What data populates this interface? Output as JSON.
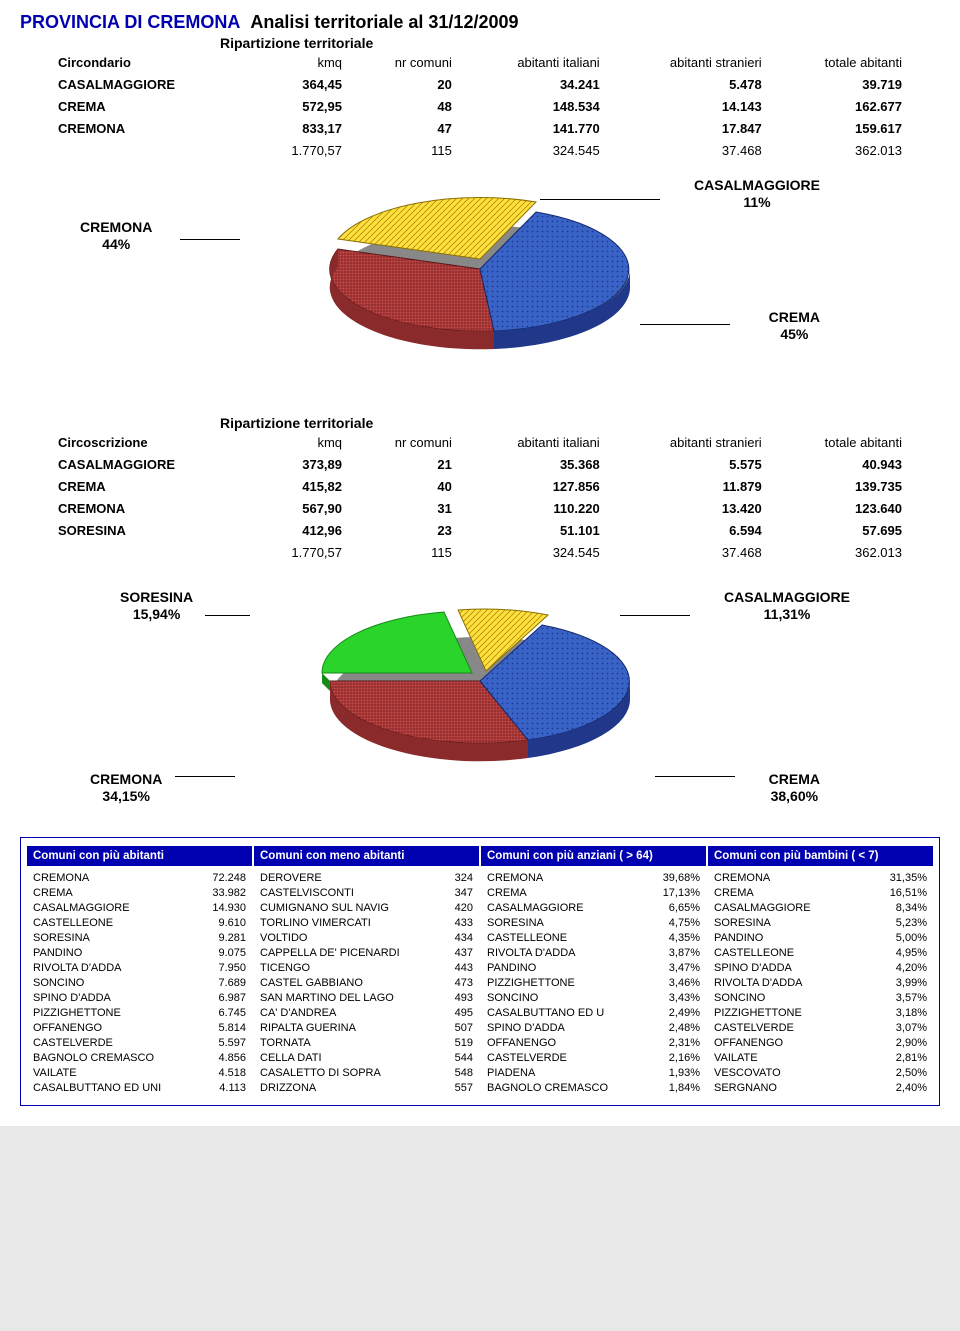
{
  "title": {
    "province": "PROVINCIA DI CREMONA",
    "subtitle": "Analisi territoriale al 31/12/2009"
  },
  "section1": {
    "heading": "Ripartizione territoriale",
    "row_label": "Circondario",
    "columns": [
      "kmq",
      "nr comuni",
      "abitanti italiani",
      "abitanti stranieri",
      "totale abitanti"
    ],
    "rows": [
      {
        "name": "CASALMAGGIORE",
        "kmq": "364,45",
        "comuni": "20",
        "ital": "34.241",
        "stran": "5.478",
        "tot": "39.719"
      },
      {
        "name": "CREMA",
        "kmq": "572,95",
        "comuni": "48",
        "ital": "148.534",
        "stran": "14.143",
        "tot": "162.677"
      },
      {
        "name": "CREMONA",
        "kmq": "833,17",
        "comuni": "47",
        "ital": "141.770",
        "stran": "17.847",
        "tot": "159.617"
      }
    ],
    "total": {
      "kmq": "1.770,57",
      "comuni": "115",
      "ital": "324.545",
      "stran": "37.468",
      "tot": "362.013"
    }
  },
  "chart1": {
    "type": "pie-3d",
    "slices": [
      {
        "label": "CREMONA\n44%",
        "pct": 44,
        "color": "#c94a4a",
        "pattern": "grid"
      },
      {
        "label": "CASALMAGGIORE\n11%",
        "pct": 11,
        "color": "#ffe040",
        "pattern": "diag"
      },
      {
        "label": "CREMA\n45%",
        "pct": 45,
        "color": "#3a63c8",
        "pattern": "dots"
      }
    ],
    "labels": {
      "cremona": "CREMONA",
      "cremona_pct": "44%",
      "casal": "CASALMAGGIORE",
      "casal_pct": "11%",
      "crema": "CREMA",
      "crema_pct": "45%"
    }
  },
  "section2": {
    "heading": "Ripartizione territoriale",
    "row_label": "Circoscrizione",
    "columns": [
      "kmq",
      "nr comuni",
      "abitanti italiani",
      "abitanti stranieri",
      "totale abitanti"
    ],
    "rows": [
      {
        "name": "CASALMAGGIORE",
        "kmq": "373,89",
        "comuni": "21",
        "ital": "35.368",
        "stran": "5.575",
        "tot": "40.943"
      },
      {
        "name": "CREMA",
        "kmq": "415,82",
        "comuni": "40",
        "ital": "127.856",
        "stran": "11.879",
        "tot": "139.735"
      },
      {
        "name": "CREMONA",
        "kmq": "567,90",
        "comuni": "31",
        "ital": "110.220",
        "stran": "13.420",
        "tot": "123.640"
      },
      {
        "name": "SORESINA",
        "kmq": "412,96",
        "comuni": "23",
        "ital": "51.101",
        "stran": "6.594",
        "tot": "57.695"
      }
    ],
    "total": {
      "kmq": "1.770,57",
      "comuni": "115",
      "ital": "324.545",
      "stran": "37.468",
      "tot": "362.013"
    }
  },
  "chart2": {
    "type": "pie-3d",
    "slices": [
      {
        "label": "SORESINA\n15,94%",
        "pct": 15.94,
        "color": "#2bd42b",
        "pattern": "none"
      },
      {
        "label": "CASALMAGGIORE\n11,31%",
        "pct": 11.31,
        "color": "#ffe040",
        "pattern": "diag"
      },
      {
        "label": "CREMA\n38,60%",
        "pct": 38.6,
        "color": "#3a63c8",
        "pattern": "dots"
      },
      {
        "label": "CREMONA\n34,15%",
        "pct": 34.15,
        "color": "#c94a4a",
        "pattern": "grid"
      }
    ],
    "labels": {
      "soresina": "SORESINA",
      "soresina_pct": "15,94%",
      "casal": "CASALMAGGIORE",
      "casal_pct": "11,31%",
      "cremona": "CREMONA",
      "cremona_pct": "34,15%",
      "crema": "CREMA",
      "crema_pct": "38,60%"
    }
  },
  "lists": {
    "heads": [
      "Comuni con più abitanti",
      "Comuni con meno abitanti",
      "Comuni con più anziani ( > 64)",
      "Comuni con più bambini ( < 7)"
    ],
    "col1": [
      [
        "CREMONA",
        "72.248"
      ],
      [
        "CREMA",
        "33.982"
      ],
      [
        "CASALMAGGIORE",
        "14.930"
      ],
      [
        "CASTELLEONE",
        "9.610"
      ],
      [
        "SORESINA",
        "9.281"
      ],
      [
        "PANDINO",
        "9.075"
      ],
      [
        "RIVOLTA D'ADDA",
        "7.950"
      ],
      [
        "SONCINO",
        "7.689"
      ],
      [
        "SPINO D'ADDA",
        "6.987"
      ],
      [
        "PIZZIGHETTONE",
        "6.745"
      ],
      [
        "OFFANENGO",
        "5.814"
      ],
      [
        "CASTELVERDE",
        "5.597"
      ],
      [
        "BAGNOLO CREMASCO",
        "4.856"
      ],
      [
        "VAILATE",
        "4.518"
      ],
      [
        "CASALBUTTANO ED UNI",
        "4.113"
      ]
    ],
    "col2": [
      [
        "DEROVERE",
        "324"
      ],
      [
        "CASTELVISCONTI",
        "347"
      ],
      [
        "CUMIGNANO SUL NAVIG",
        "420"
      ],
      [
        "TORLINO VIMERCATI",
        "433"
      ],
      [
        "VOLTIDO",
        "434"
      ],
      [
        "CAPPELLA DE' PICENARDI",
        "437"
      ],
      [
        "TICENGO",
        "443"
      ],
      [
        "CASTEL GABBIANO",
        "473"
      ],
      [
        "SAN MARTINO DEL LAGO",
        "493"
      ],
      [
        "CA' D'ANDREA",
        "495"
      ],
      [
        "RIPALTA GUERINA",
        "507"
      ],
      [
        "TORNATA",
        "519"
      ],
      [
        "CELLA DATI",
        "544"
      ],
      [
        "CASALETTO DI SOPRA",
        "548"
      ],
      [
        "DRIZZONA",
        "557"
      ]
    ],
    "col3": [
      [
        "CREMONA",
        "39,68%"
      ],
      [
        "CREMA",
        "17,13%"
      ],
      [
        "CASALMAGGIORE",
        "6,65%"
      ],
      [
        "SORESINA",
        "4,75%"
      ],
      [
        "CASTELLEONE",
        "4,35%"
      ],
      [
        "RIVOLTA D'ADDA",
        "3,87%"
      ],
      [
        "PANDINO",
        "3,47%"
      ],
      [
        "PIZZIGHETTONE",
        "3,46%"
      ],
      [
        "SONCINO",
        "3,43%"
      ],
      [
        "CASALBUTTANO ED U",
        "2,49%"
      ],
      [
        "SPINO D'ADDA",
        "2,48%"
      ],
      [
        "OFFANENGO",
        "2,31%"
      ],
      [
        "CASTELVERDE",
        "2,16%"
      ],
      [
        "PIADENA",
        "1,93%"
      ],
      [
        "BAGNOLO CREMASCO",
        "1,84%"
      ]
    ],
    "col4": [
      [
        "CREMONA",
        "31,35%"
      ],
      [
        "CREMA",
        "16,51%"
      ],
      [
        "CASALMAGGIORE",
        "8,34%"
      ],
      [
        "SORESINA",
        "5,23%"
      ],
      [
        "PANDINO",
        "5,00%"
      ],
      [
        "CASTELLEONE",
        "4,95%"
      ],
      [
        "SPINO D'ADDA",
        "4,20%"
      ],
      [
        "RIVOLTA D'ADDA",
        "3,99%"
      ],
      [
        "SONCINO",
        "3,57%"
      ],
      [
        "PIZZIGHETTONE",
        "3,18%"
      ],
      [
        "CASTELVERDE",
        "3,07%"
      ],
      [
        "OFFANENGO",
        "2,90%"
      ],
      [
        "VAILATE",
        "2,81%"
      ],
      [
        "VESCOVATO",
        "2,50%"
      ],
      [
        "SERGNANO",
        "2,40%"
      ]
    ]
  }
}
